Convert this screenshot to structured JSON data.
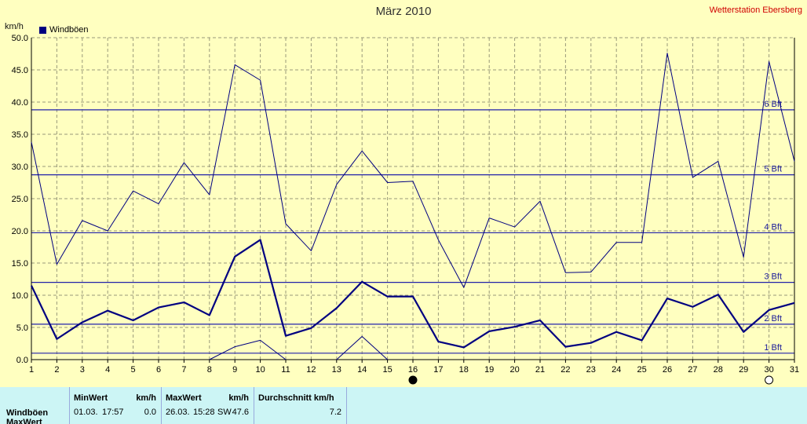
{
  "header": {
    "title": "März 2010",
    "station": "Wetterstation Ebersberg",
    "y_unit": "km/h"
  },
  "legend": {
    "label": "Windböen",
    "color": "#000080"
  },
  "chart_data": {
    "type": "line",
    "title": "März 2010",
    "ylabel": "km/h",
    "xlabel": "",
    "x": [
      1,
      2,
      3,
      4,
      5,
      6,
      7,
      8,
      9,
      10,
      11,
      12,
      13,
      14,
      15,
      16,
      17,
      18,
      19,
      20,
      21,
      22,
      23,
      24,
      25,
      26,
      27,
      28,
      29,
      30,
      31
    ],
    "xlim": [
      1,
      31
    ],
    "ylim": [
      0,
      50
    ],
    "yticks": [
      "0.0",
      "5.0",
      "10.0",
      "15.0",
      "20.0",
      "25.0",
      "30.0",
      "35.0",
      "40.0",
      "45.0",
      "50.0"
    ],
    "grid": true,
    "legend_position": "top-left",
    "series": [
      {
        "name": "Windböen",
        "role": "mean",
        "values": [
          11.5,
          3.2,
          5.8,
          7.6,
          6.1,
          8.1,
          8.9,
          6.9,
          16.0,
          18.6,
          3.7,
          4.9,
          8.0,
          12.1,
          9.8,
          9.8,
          2.8,
          1.9,
          4.4,
          5.1,
          6.1,
          2.0,
          2.6,
          4.3,
          3.0,
          9.5,
          8.2,
          10.1,
          4.3,
          7.7,
          8.8
        ]
      },
      {
        "name": "",
        "role": "max",
        "values": [
          33.8,
          14.8,
          21.6,
          20.0,
          26.2,
          24.2,
          30.6,
          25.6,
          45.8,
          43.4,
          21.1,
          16.9,
          27.2,
          32.4,
          27.5,
          27.7,
          18.6,
          11.2,
          22.0,
          20.6,
          24.6,
          13.5,
          13.6,
          18.2,
          18.2,
          47.6,
          28.3,
          30.8,
          15.9,
          46.3,
          30.8
        ]
      },
      {
        "name": "",
        "role": "min",
        "values": [
          null,
          null,
          null,
          null,
          null,
          null,
          null,
          0.0,
          2.0,
          3.0,
          0.0,
          null,
          0.0,
          3.6,
          0.0,
          null,
          null,
          null,
          null,
          null,
          null,
          null,
          null,
          null,
          null,
          null,
          null,
          null,
          null,
          null,
          null
        ]
      }
    ],
    "beaufort_lines": [
      {
        "label": "1 Bft",
        "value": 1.0
      },
      {
        "label": "2 Bft",
        "value": 5.5
      },
      {
        "label": "3 Bft",
        "value": 12.0
      },
      {
        "label": "4 Bft",
        "value": 19.7
      },
      {
        "label": "5 Bft",
        "value": 28.7
      },
      {
        "label": "6 Bft",
        "value": 38.8
      }
    ],
    "markers": [
      {
        "x": 16,
        "symbol": "full-moon",
        "color": "#000000"
      },
      {
        "x": 30,
        "symbol": "new-moon",
        "color": "#ffffff"
      }
    ]
  },
  "stats": {
    "row_label": "Windböen",
    "row_label2": "MaxWert",
    "min_header": "MinWert",
    "min_unit": "km/h",
    "min_date": "01.03.",
    "min_time": "17:57",
    "min_value": "0.0",
    "max_header": "MaxWert",
    "max_unit": "km/h",
    "max_date": "26.03.",
    "max_time": "15:28",
    "max_dir": "SW",
    "max_value": "47.6",
    "avg_header": "Durchschnitt km/h",
    "avg_value": "7.2"
  }
}
